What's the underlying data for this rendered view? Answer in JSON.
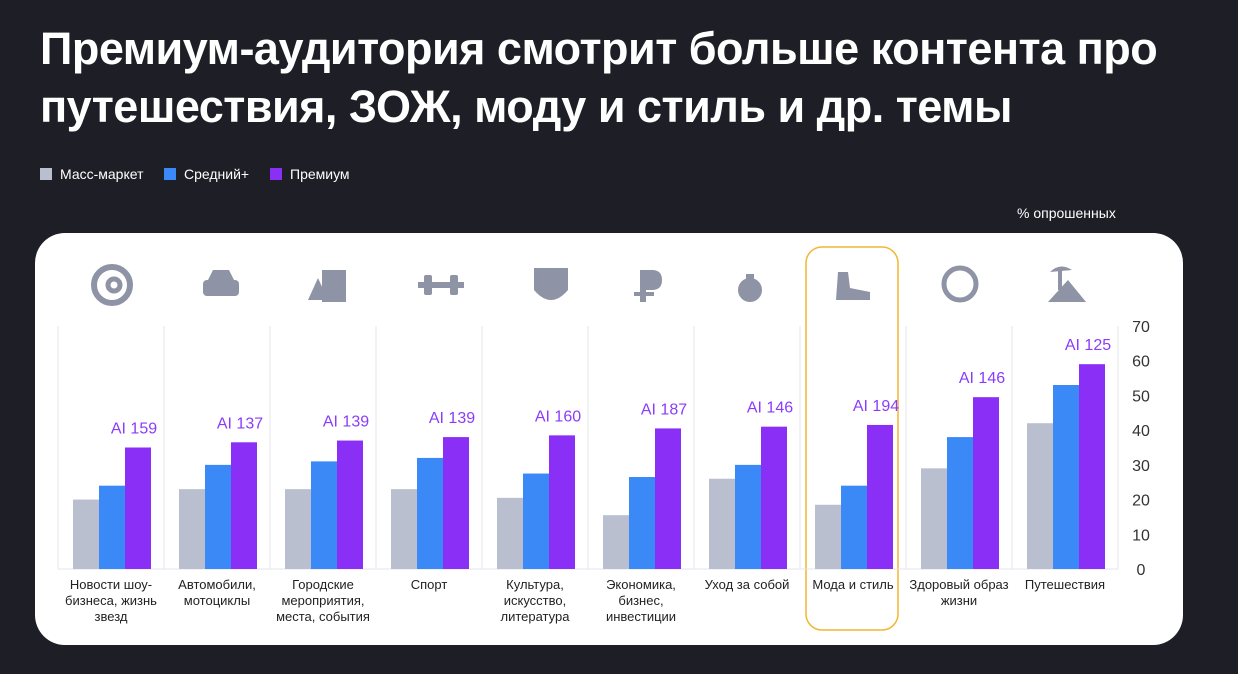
{
  "chart_data": {
    "type": "bar",
    "title": "Премиум-аудитория смотрит больше контента про путешествия, ЗОЖ, моду и стиль и др. темы",
    "unit_label": "% опрошенных",
    "categories": [
      "Новости шоу-бизнеса, жизнь звезд",
      "Автомобили, мотоциклы",
      "Городские мероприятия, места, события",
      "Спорт",
      "Культура, искусство, литература",
      "Экономика, бизнес, инвестиции",
      "Уход за собой",
      "Мода и стиль",
      "Здоровый образ жизни",
      "Путешествия"
    ],
    "series": [
      {
        "name": "Масс-маркет",
        "color": "#b9bfcf",
        "values": [
          20,
          23,
          23,
          23,
          20.5,
          15.5,
          26,
          18.5,
          29,
          42
        ]
      },
      {
        "name": "Средний+",
        "color": "#3b89f7",
        "values": [
          24,
          30,
          31,
          32,
          27.5,
          26.5,
          30,
          24,
          38,
          53
        ]
      },
      {
        "name": "Премиум",
        "color": "#8a2ff6",
        "values": [
          35,
          36.5,
          37,
          38,
          38.5,
          40.5,
          41,
          41.5,
          49.5,
          59
        ]
      }
    ],
    "annotations": [
      "AI 159",
      "AI 137",
      "AI 139",
      "AI 139",
      "AI 160",
      "AI 187",
      "AI 146",
      "AI 194",
      "AI 146",
      "AI 125"
    ],
    "ylim": [
      0,
      70
    ],
    "yticks": [
      0,
      10,
      20,
      30,
      40,
      50,
      60,
      70
    ]
  }
}
